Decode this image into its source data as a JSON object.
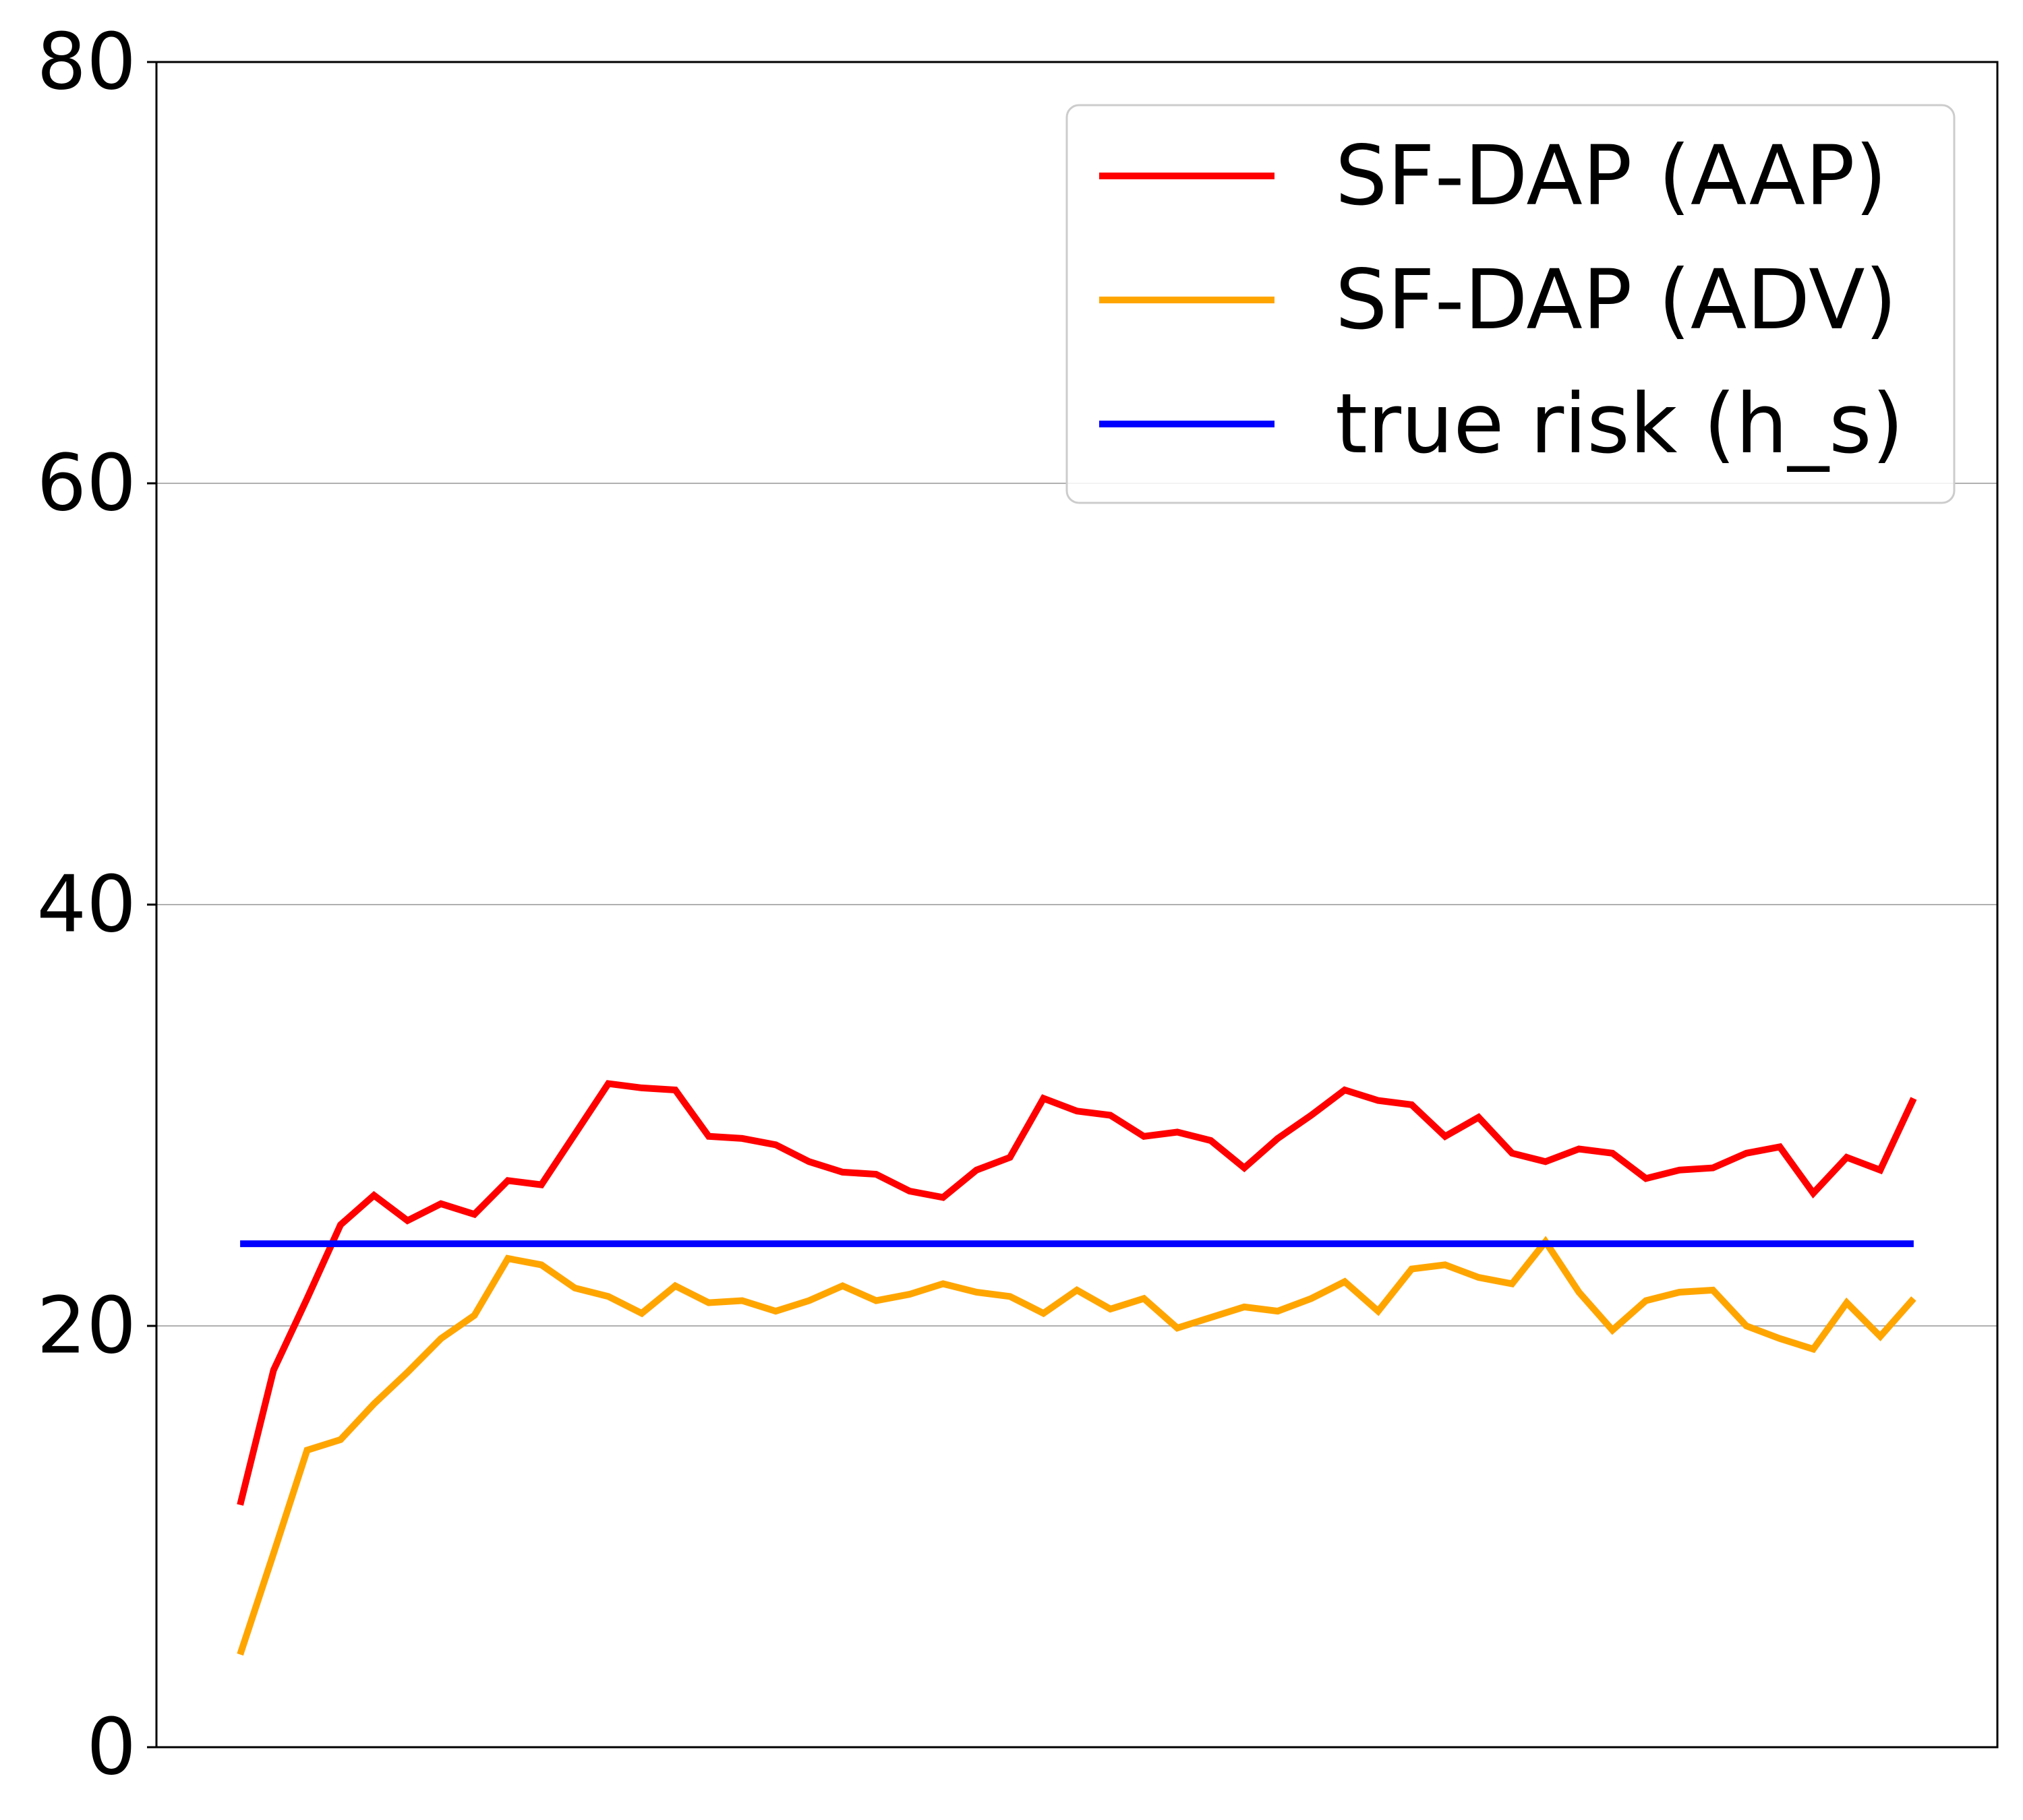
{
  "chart_data": {
    "type": "line",
    "title": "",
    "xlabel": "",
    "ylabel": "",
    "ylim": [
      0,
      80
    ],
    "yticks": [
      0,
      20,
      40,
      60,
      80
    ],
    "xticks_shown": false,
    "grid": "horizontal",
    "legend_position": "top-right",
    "x": [
      1,
      2,
      3,
      4,
      5,
      6,
      7,
      8,
      9,
      10,
      11,
      12,
      13,
      14,
      15,
      16,
      17,
      18,
      19,
      20,
      21,
      22,
      23,
      24,
      25,
      26,
      27,
      28,
      29,
      30,
      31,
      32,
      33,
      34,
      35,
      36,
      37,
      38,
      39,
      40,
      41,
      42,
      43,
      44,
      45,
      46,
      47,
      48,
      49,
      50,
      51
    ],
    "series": [
      {
        "name": "SF-DAP (AAP)",
        "color": "#ff0000",
        "values": [
          11.5,
          17.9,
          21.3,
          24.8,
          26.2,
          25.0,
          25.8,
          25.3,
          26.9,
          26.7,
          29.1,
          31.5,
          31.3,
          31.2,
          29.0,
          28.9,
          28.6,
          27.8,
          27.3,
          27.2,
          26.4,
          26.1,
          27.4,
          28.0,
          30.8,
          30.2,
          30.0,
          29.0,
          29.2,
          28.8,
          27.5,
          28.9,
          30.0,
          31.2,
          30.7,
          30.5,
          29.0,
          29.9,
          28.2,
          27.8,
          28.4,
          28.2,
          27.0,
          27.4,
          27.5,
          28.2,
          28.5,
          26.3,
          28.0,
          27.4,
          30.8
        ]
      },
      {
        "name": "SF-DAP (ADV)",
        "color": "#ffa500",
        "values": [
          4.4,
          9.2,
          14.1,
          14.6,
          16.3,
          17.8,
          19.4,
          20.5,
          23.2,
          22.9,
          21.8,
          21.4,
          20.6,
          21.9,
          21.1,
          21.2,
          20.7,
          21.2,
          21.9,
          21.2,
          21.5,
          22.0,
          21.6,
          21.4,
          20.6,
          21.7,
          20.8,
          21.3,
          19.9,
          20.4,
          20.9,
          20.7,
          21.3,
          22.1,
          20.7,
          22.7,
          22.9,
          22.3,
          22.0,
          24.0,
          21.6,
          19.8,
          21.2,
          21.6,
          21.7,
          20.0,
          19.4,
          18.9,
          21.1,
          19.5,
          21.3
        ]
      },
      {
        "name": "true risk (h_s)",
        "color": "#0000ff",
        "values": [
          23.9,
          23.9,
          23.9,
          23.9,
          23.9,
          23.9,
          23.9,
          23.9,
          23.9,
          23.9,
          23.9,
          23.9,
          23.9,
          23.9,
          23.9,
          23.9,
          23.9,
          23.9,
          23.9,
          23.9,
          23.9,
          23.9,
          23.9,
          23.9,
          23.9,
          23.9,
          23.9,
          23.9,
          23.9,
          23.9,
          23.9,
          23.9,
          23.9,
          23.9,
          23.9,
          23.9,
          23.9,
          23.9,
          23.9,
          23.9,
          23.9,
          23.9,
          23.9,
          23.9,
          23.9,
          23.9,
          23.9,
          23.9,
          23.9,
          23.9,
          23.9
        ]
      }
    ]
  }
}
